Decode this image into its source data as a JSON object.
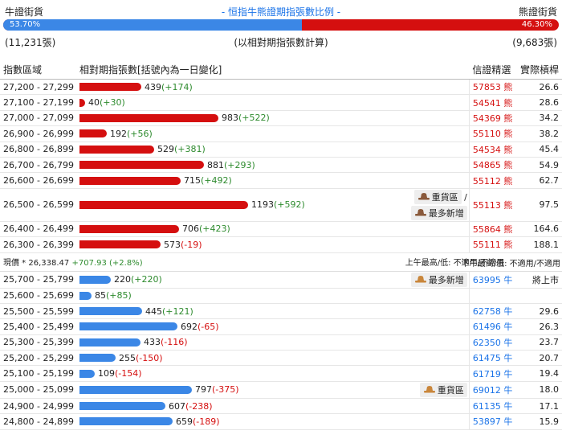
{
  "header": {
    "left_label": "牛證街貨",
    "right_label": "熊證街貨",
    "title": "- 恒指牛熊證期指張數比例 -",
    "bull_pct": "53.70%",
    "bear_pct": "46.30%",
    "bull_fraction": 0.537,
    "bull_count": "(11,231張)",
    "bear_count": "(9,683張)",
    "center_note": "(以相對期指張數計算)",
    "bull_color": "#3b87e6",
    "bear_color": "#d50f0f"
  },
  "columns": {
    "range": "指數區域",
    "contracts": "相對期指張數[括號內為一日變化]",
    "cbbc": "信證精選",
    "leverage": "實際槓桿"
  },
  "bear_rows": [
    {
      "range": "27,200 - 27,299",
      "count": 439,
      "change": "(+174)",
      "sign": "pos",
      "tags": [],
      "code": "57853 熊",
      "leverage": "26.6"
    },
    {
      "range": "27,100 - 27,199",
      "count": 40,
      "change": "(+30)",
      "sign": "pos",
      "tags": [],
      "code": "54541 熊",
      "leverage": "28.6"
    },
    {
      "range": "27,000 - 27,099",
      "count": 983,
      "change": "(+522)",
      "sign": "pos",
      "tags": [],
      "code": "54369 熊",
      "leverage": "34.2"
    },
    {
      "range": "26,900 - 26,999",
      "count": 192,
      "change": "(+56)",
      "sign": "pos",
      "tags": [],
      "code": "55110 熊",
      "leverage": "38.2"
    },
    {
      "range": "26,800 - 26,899",
      "count": 529,
      "change": "(+381)",
      "sign": "pos",
      "tags": [],
      "code": "54534 熊",
      "leverage": "45.4"
    },
    {
      "range": "26,700 - 26,799",
      "count": 881,
      "change": "(+293)",
      "sign": "pos",
      "tags": [],
      "code": "54865 熊",
      "leverage": "54.9"
    },
    {
      "range": "26,600 - 26,699",
      "count": 715,
      "change": "(+492)",
      "sign": "pos",
      "tags": [],
      "code": "55112 熊",
      "leverage": "62.7"
    },
    {
      "range": "26,500 - 26,599",
      "count": 1193,
      "change": "(+592)",
      "sign": "pos",
      "tags": [
        "重貨區",
        "最多新增"
      ],
      "code": "55113 熊",
      "leverage": "97.5"
    },
    {
      "range": "26,400 - 26,499",
      "count": 706,
      "change": "(+423)",
      "sign": "pos",
      "tags": [],
      "code": "55864 熊",
      "leverage": "164.6"
    },
    {
      "range": "26,300 - 26,399",
      "count": 573,
      "change": "(-19)",
      "sign": "neg",
      "tags": [],
      "code": "55111 熊",
      "leverage": "188.1"
    }
  ],
  "current": {
    "label": "現價 *",
    "value": "26,338.47",
    "change": "+707.93 (+2.8%)",
    "am_high_low": "上午最高/低: 不適用/不適用",
    "pm_high_low": "下午最高/低: 不適用/不適用"
  },
  "bull_rows": [
    {
      "range": "25,700 - 25,799",
      "count": 220,
      "change": "(+220)",
      "sign": "pos",
      "tags": [
        "最多新增"
      ],
      "code": "63995 牛",
      "leverage": "將上市"
    },
    {
      "range": "25,600 - 25,699",
      "count": 85,
      "change": "(+85)",
      "sign": "pos",
      "tags": [],
      "code": "",
      "leverage": ""
    },
    {
      "range": "25,500 - 25,599",
      "count": 445,
      "change": "(+121)",
      "sign": "pos",
      "tags": [],
      "code": "62758 牛",
      "leverage": "29.6"
    },
    {
      "range": "25,400 - 25,499",
      "count": 692,
      "change": "(-65)",
      "sign": "neg",
      "tags": [],
      "code": "61496 牛",
      "leverage": "26.3"
    },
    {
      "range": "25,300 - 25,399",
      "count": 433,
      "change": "(-116)",
      "sign": "neg",
      "tags": [],
      "code": "62350 牛",
      "leverage": "23.7"
    },
    {
      "range": "25,200 - 25,299",
      "count": 255,
      "change": "(-150)",
      "sign": "neg",
      "tags": [],
      "code": "61475 牛",
      "leverage": "20.7"
    },
    {
      "range": "25,100 - 25,199",
      "count": 109,
      "change": "(-154)",
      "sign": "neg",
      "tags": [],
      "code": "61719 牛",
      "leverage": "19.4"
    },
    {
      "range": "25,000 - 25,099",
      "count": 797,
      "change": "(-375)",
      "sign": "neg",
      "tags": [
        "重貨區"
      ],
      "code": "69012 牛",
      "leverage": "18.0"
    },
    {
      "range": "24,900 - 24,999",
      "count": 607,
      "change": "(-238)",
      "sign": "neg",
      "tags": [],
      "code": "61135 牛",
      "leverage": "17.1"
    },
    {
      "range": "24,800 - 24,899",
      "count": 659,
      "change": "(-189)",
      "sign": "neg",
      "tags": [],
      "code": "53897 牛",
      "leverage": "15.9"
    }
  ],
  "max_count": 1193
}
